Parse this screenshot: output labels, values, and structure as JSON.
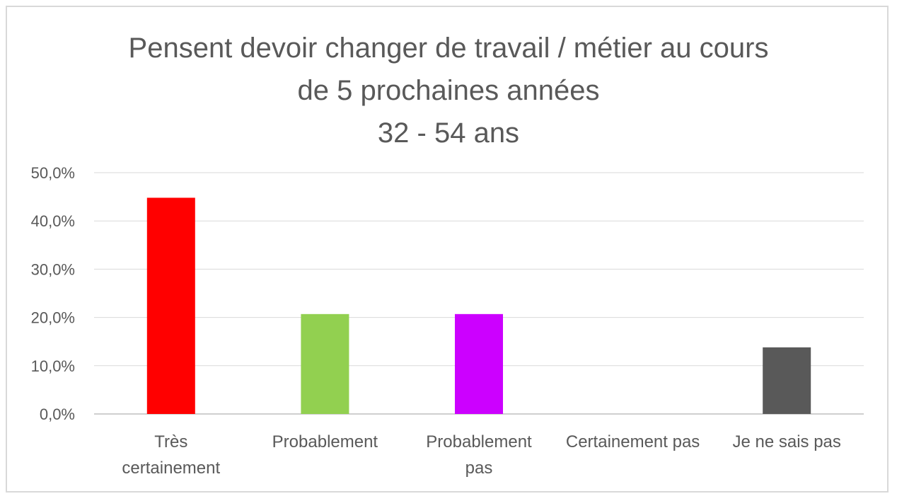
{
  "chart_data": {
    "type": "bar",
    "title_lines": [
      "Pensent devoir changer de travail / métier au cours",
      "de 5 prochaines années",
      "32 - 54 ans"
    ],
    "categories": [
      [
        "Très",
        "certainement"
      ],
      [
        "Probablement"
      ],
      [
        "Probablement",
        "pas"
      ],
      [
        "Certainement pas"
      ],
      [
        "Je ne sais pas"
      ]
    ],
    "values": [
      44.8,
      20.7,
      20.7,
      0.0,
      13.8
    ],
    "colors": [
      "#ff0000",
      "#92d050",
      "#cc00ff",
      "#a6a6a6",
      "#595959"
    ],
    "ylim": [
      0,
      50
    ],
    "yticks": [
      "0,0%",
      "10,0%",
      "20,0%",
      "30,0%",
      "40,0%",
      "50,0%"
    ],
    "grid": true,
    "legend": "none"
  }
}
